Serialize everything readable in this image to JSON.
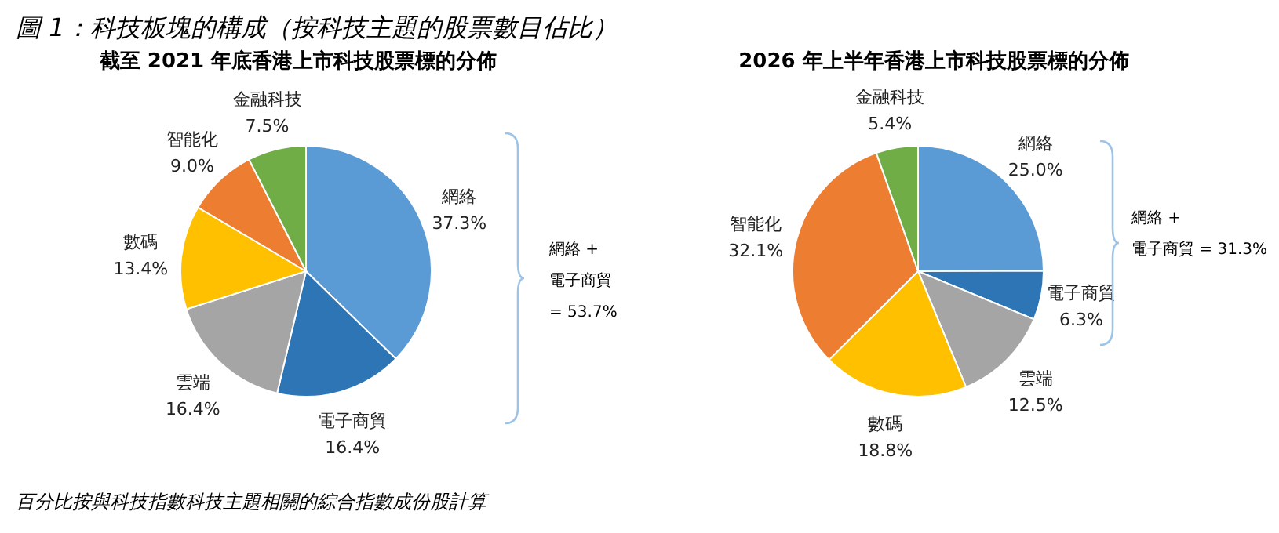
{
  "chart_data": [
    {
      "type": "pie",
      "title": "截至 2021 年底香港上市科技股票標的分佈",
      "categories": [
        "網絡",
        "電子商貿",
        "雲端",
        "數碼",
        "智能化",
        "金融科技"
      ],
      "values": [
        37.3,
        16.4,
        16.4,
        13.4,
        9.0,
        7.5
      ],
      "colors": [
        "#5b9bd5",
        "#2e75b6",
        "#a5a5a5",
        "#ffc000",
        "#ed7d31",
        "#70ad47"
      ],
      "value_labels": [
        "37.3%",
        "16.4%",
        "16.4%",
        "13.4%",
        "9.0%",
        "7.5%"
      ],
      "annotations": [
        "網絡 +\n電子商貿\n= 53.7%",
        "圖 1：科技板塊的構成（按科技主題的股票數目佔比）",
        "百分比按與科技指數科技主題相關的綜合指數成份股計算"
      ],
      "legend": false
    },
    {
      "type": "pie",
      "title": "2026 年上半年香港上市科技股票標的分佈",
      "categories": [
        "網絡",
        "電子商貿",
        "雲端",
        "數碼",
        "智能化",
        "金融科技"
      ],
      "values": [
        25.0,
        6.3,
        12.5,
        18.8,
        32.1,
        5.4
      ],
      "colors": [
        "#5b9bd5",
        "#2e75b6",
        "#a5a5a5",
        "#ffc000",
        "#ed7d31",
        "#70ad47"
      ],
      "value_labels": [
        "25.0%",
        "6.3%",
        "12.5%",
        "18.8%",
        "32.1%",
        "5.4%"
      ],
      "annotations": [
        "網絡 +\n電子商貿 = 31.3%"
      ],
      "legend": false
    }
  ]
}
